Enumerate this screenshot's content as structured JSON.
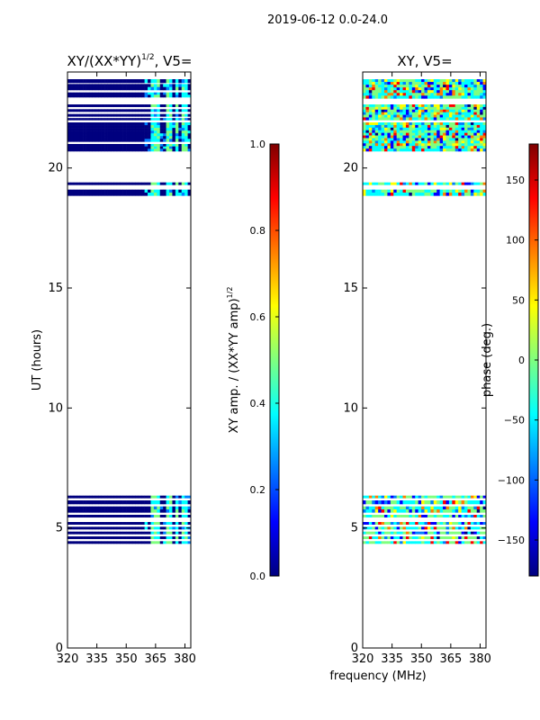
{
  "figure": {
    "suptitle": "2019-06-12 0.0-24.0"
  },
  "colormap": [
    "#00007f",
    "#0000ff",
    "#007fff",
    "#00ffff",
    "#7fff7f",
    "#ffff00",
    "#ff7f00",
    "#ff0000",
    "#7f0000"
  ],
  "chart_data": [
    {
      "type": "heatmap",
      "panel": "left",
      "title_main": "XY/(XX*YY)",
      "title_sup": "1/2",
      "title_tail": ", V5=",
      "xlabel": "",
      "ylabel": "UT (hours)",
      "xlim": [
        320,
        383
      ],
      "ylim": [
        0,
        24
      ],
      "xticks": [
        320,
        335,
        350,
        365,
        380
      ],
      "yticks": [
        0,
        5,
        10,
        15,
        20
      ],
      "rows": [
        {
          "t0": 4.35,
          "t1": 4.45,
          "kind": "amp"
        },
        {
          "t0": 4.55,
          "t1": 4.65,
          "kind": "amp"
        },
        {
          "t0": 4.75,
          "t1": 4.85,
          "kind": "amp"
        },
        {
          "t0": 4.95,
          "t1": 5.05,
          "kind": "amp"
        },
        {
          "t0": 5.15,
          "t1": 5.25,
          "kind": "amp"
        },
        {
          "t0": 5.45,
          "t1": 5.55,
          "kind": "amp"
        },
        {
          "t0": 5.65,
          "t1": 5.9,
          "kind": "amp"
        },
        {
          "t0": 6.0,
          "t1": 6.15,
          "kind": "amp"
        },
        {
          "t0": 6.25,
          "t1": 6.35,
          "kind": "amp"
        },
        {
          "t0": 18.85,
          "t1": 19.1,
          "kind": "amp"
        },
        {
          "t0": 19.3,
          "t1": 19.4,
          "kind": "amp"
        },
        {
          "t0": 20.7,
          "t1": 21.0,
          "kind": "amp"
        },
        {
          "t0": 21.1,
          "t1": 21.9,
          "kind": "amp"
        },
        {
          "t0": 22.0,
          "t1": 22.08,
          "kind": "amp"
        },
        {
          "t0": 22.15,
          "t1": 22.25,
          "kind": "amp"
        },
        {
          "t0": 22.35,
          "t1": 22.45,
          "kind": "amp"
        },
        {
          "t0": 22.55,
          "t1": 22.65,
          "kind": "amp"
        },
        {
          "t0": 22.95,
          "t1": 23.15,
          "kind": "amp"
        },
        {
          "t0": 23.25,
          "t1": 23.5,
          "kind": "amp"
        },
        {
          "t0": 23.55,
          "t1": 23.7,
          "kind": "amp"
        }
      ]
    },
    {
      "type": "colorbar",
      "panel": "amp-colorbar",
      "label_main": "XY amp. / (XX*YY amp)",
      "label_sup": "1/2",
      "range": [
        0.0,
        1.0
      ],
      "ticks": [
        0.0,
        0.2,
        0.4,
        0.6,
        0.8,
        1.0
      ],
      "tick_labels": [
        "0.0",
        "0.2",
        "0.4",
        "0.6",
        "0.8",
        "1.0"
      ]
    },
    {
      "type": "heatmap",
      "panel": "right",
      "title": "XY, V5=",
      "xlabel": "frequency (MHz)",
      "ylabel": "",
      "xlim": [
        320,
        383
      ],
      "ylim": [
        0,
        24
      ],
      "xticks": [
        320,
        335,
        350,
        365,
        380
      ],
      "yticks": [
        0,
        5,
        10,
        15,
        20
      ],
      "rows": [
        {
          "t0": 4.35,
          "t1": 4.45,
          "kind": "phase"
        },
        {
          "t0": 4.55,
          "t1": 4.65,
          "kind": "phase"
        },
        {
          "t0": 4.75,
          "t1": 4.85,
          "kind": "phase"
        },
        {
          "t0": 4.95,
          "t1": 5.05,
          "kind": "phase"
        },
        {
          "t0": 5.15,
          "t1": 5.25,
          "kind": "phase"
        },
        {
          "t0": 5.45,
          "t1": 5.55,
          "kind": "phase"
        },
        {
          "t0": 5.65,
          "t1": 5.9,
          "kind": "phase"
        },
        {
          "t0": 6.0,
          "t1": 6.15,
          "kind": "phase"
        },
        {
          "t0": 6.25,
          "t1": 6.35,
          "kind": "phase"
        },
        {
          "t0": 18.85,
          "t1": 19.1,
          "kind": "phase"
        },
        {
          "t0": 19.3,
          "t1": 19.4,
          "kind": "phase"
        },
        {
          "t0": 20.7,
          "t1": 21.9,
          "kind": "phase"
        },
        {
          "t0": 22.0,
          "t1": 22.65,
          "kind": "phase"
        },
        {
          "t0": 22.9,
          "t1": 23.7,
          "kind": "phase"
        }
      ]
    },
    {
      "type": "colorbar",
      "panel": "phase-colorbar",
      "label": "phase (deg.)",
      "range": [
        -180,
        180
      ],
      "ticks": [
        -150,
        -100,
        -50,
        0,
        50,
        100,
        150
      ],
      "tick_labels": [
        "−150",
        "−100",
        "−50",
        "0",
        "50",
        "100",
        "150"
      ]
    }
  ]
}
